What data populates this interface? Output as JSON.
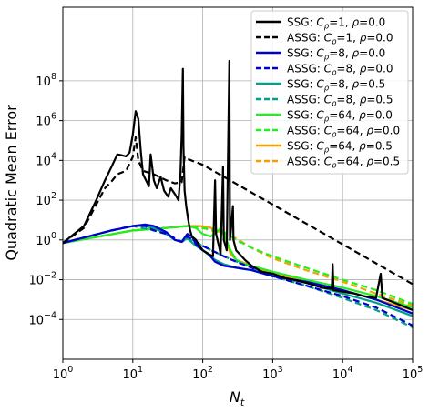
{
  "chart_data": {
    "type": "line",
    "xlabel_base": "N",
    "xlabel_sub": "t",
    "ylabel": "Quadratic Mean Error",
    "xscale": "log",
    "yscale": "log",
    "xlim": [
      1,
      100000
    ],
    "ylim": [
      1e-06,
      500000000000
    ],
    "grid": true,
    "legend_position": "top-right",
    "xticks": [
      {
        "value": 1,
        "base": "10",
        "exp": "0"
      },
      {
        "value": 10,
        "base": "10",
        "exp": "1"
      },
      {
        "value": 100,
        "base": "10",
        "exp": "2"
      },
      {
        "value": 1000,
        "base": "10",
        "exp": "3"
      },
      {
        "value": 10000,
        "base": "10",
        "exp": "4"
      },
      {
        "value": 100000,
        "base": "10",
        "exp": "5"
      }
    ],
    "yticks": [
      {
        "value": 0.0001,
        "base": "10",
        "exp": "−4"
      },
      {
        "value": 0.01,
        "base": "10",
        "exp": "−2"
      },
      {
        "value": 1,
        "base": "10",
        "exp": "0"
      },
      {
        "value": 100,
        "base": "10",
        "exp": "2"
      },
      {
        "value": 10000,
        "base": "10",
        "exp": "4"
      },
      {
        "value": 1000000,
        "base": "10",
        "exp": "6"
      },
      {
        "value": 100000000,
        "base": "10",
        "exp": "8"
      }
    ],
    "series": [
      {
        "name": "SSG: Cρ=1, ρ=0.0",
        "label": {
          "prefix": "SSG: ",
          "c": "1",
          "rho": "0.0"
        },
        "color": "#000000",
        "dash": false,
        "points": [
          [
            1,
            0.7
          ],
          [
            2,
            5
          ],
          [
            3,
            100
          ],
          [
            4,
            1000
          ],
          [
            5,
            5000
          ],
          [
            6,
            20000
          ],
          [
            7,
            18000
          ],
          [
            8,
            16000
          ],
          [
            9,
            25000
          ],
          [
            10,
            200000
          ],
          [
            11,
            3000000
          ],
          [
            12,
            1200000
          ],
          [
            13,
            30000
          ],
          [
            14,
            2000
          ],
          [
            17,
            500
          ],
          [
            18,
            20000
          ],
          [
            20,
            1000
          ],
          [
            22,
            400
          ],
          [
            25,
            1500
          ],
          [
            28,
            300
          ],
          [
            32,
            150
          ],
          [
            35,
            400
          ],
          [
            40,
            200
          ],
          [
            45,
            100
          ],
          [
            48,
            2000
          ],
          [
            50,
            200000
          ],
          [
            52,
            400000000
          ],
          [
            53,
            50000
          ],
          [
            55,
            300
          ],
          [
            58,
            50
          ],
          [
            62,
            10
          ],
          [
            66,
            3
          ],
          [
            70,
            1.5
          ],
          [
            80,
            1
          ],
          [
            90,
            0.5
          ],
          [
            100,
            0.3
          ],
          [
            120,
            0.2
          ],
          [
            140,
            0.15
          ],
          [
            150,
            1000
          ],
          [
            155,
            2
          ],
          [
            170,
            0.5
          ],
          [
            180,
            0.2
          ],
          [
            195,
            5000
          ],
          [
            200,
            1
          ],
          [
            220,
            0.3
          ],
          [
            240,
            1000000000
          ],
          [
            245,
            1
          ],
          [
            250,
            2
          ],
          [
            270,
            50
          ],
          [
            275,
            1
          ],
          [
            300,
            0.3
          ],
          [
            400,
            0.1
          ],
          [
            500,
            0.05
          ],
          [
            700,
            0.025
          ],
          [
            1000,
            0.02
          ],
          [
            1500,
            0.012
          ],
          [
            2000,
            0.01
          ],
          [
            3000,
            0.007
          ],
          [
            5000,
            0.004
          ],
          [
            7000,
            0.0035
          ],
          [
            7200,
            0.06
          ],
          [
            7400,
            0.003
          ],
          [
            10000,
            0.0025
          ],
          [
            15000,
            0.002
          ],
          [
            20000,
            0.0015
          ],
          [
            30000,
            0.0012
          ],
          [
            35000,
            0.02
          ],
          [
            37000,
            0.0012
          ],
          [
            50000,
            0.0008
          ],
          [
            100000,
            0.0003
          ]
        ]
      },
      {
        "name": "ASSG: Cρ=1, ρ=0.0",
        "label": {
          "prefix": "ASSG: ",
          "c": "1",
          "rho": "0.0"
        },
        "color": "#000000",
        "dash": true,
        "points": [
          [
            1,
            0.7
          ],
          [
            2,
            4
          ],
          [
            3,
            60
          ],
          [
            4,
            400
          ],
          [
            5,
            900
          ],
          [
            6,
            2000
          ],
          [
            8,
            3000
          ],
          [
            10,
            15000
          ],
          [
            11,
            150000
          ],
          [
            12,
            10000
          ],
          [
            14,
            3000
          ],
          [
            20,
            2000
          ],
          [
            30,
            1000
          ],
          [
            40,
            700
          ],
          [
            50,
            800
          ],
          [
            55,
            15000
          ],
          [
            60,
            12000
          ],
          [
            100,
            6000
          ],
          [
            100000,
            0.006
          ]
        ]
      },
      {
        "name": "SSG: Cρ=8, ρ=0.0",
        "label": {
          "prefix": "SSG: ",
          "c": "8",
          "rho": "0.0"
        },
        "color": "#0000cc",
        "dash": false,
        "points": [
          [
            1,
            0.7
          ],
          [
            5,
            3
          ],
          [
            10,
            5
          ],
          [
            15,
            6
          ],
          [
            20,
            5
          ],
          [
            30,
            2.5
          ],
          [
            40,
            1
          ],
          [
            50,
            0.8
          ],
          [
            60,
            2
          ],
          [
            70,
            1.5
          ],
          [
            80,
            0.6
          ],
          [
            100,
            0.3
          ],
          [
            120,
            0.2
          ],
          [
            150,
            0.08
          ],
          [
            200,
            0.05
          ],
          [
            300,
            0.04
          ],
          [
            500,
            0.03
          ],
          [
            1000,
            0.015
          ],
          [
            3000,
            0.008
          ],
          [
            10000,
            0.003
          ],
          [
            30000,
            0.001
          ],
          [
            100000,
            0.0002
          ]
        ]
      },
      {
        "name": "ASSG: Cρ=8, ρ=0.0",
        "label": {
          "prefix": "ASSG: ",
          "c": "8",
          "rho": "0.0"
        },
        "color": "#0000cc",
        "dash": true,
        "points": [
          [
            1,
            0.7
          ],
          [
            5,
            3
          ],
          [
            10,
            5
          ],
          [
            15,
            5
          ],
          [
            20,
            3
          ],
          [
            30,
            2
          ],
          [
            40,
            1.2
          ],
          [
            50,
            0.8
          ],
          [
            60,
            1.5
          ],
          [
            100,
            0.5
          ],
          [
            200,
            0.15
          ],
          [
            300,
            0.08
          ],
          [
            500,
            0.04
          ],
          [
            1000,
            0.015
          ],
          [
            3000,
            0.005
          ],
          [
            10000,
            0.0015
          ],
          [
            30000,
            0.0004
          ],
          [
            100000,
            5e-05
          ]
        ]
      },
      {
        "name": "SSG: Cρ=8, ρ=0.5",
        "label": {
          "prefix": "SSG: ",
          "c": "8",
          "rho": "0.5"
        },
        "color": "#00a08a",
        "dash": false,
        "points": [
          [
            1,
            0.7
          ],
          [
            5,
            3
          ],
          [
            10,
            5
          ],
          [
            15,
            5
          ],
          [
            20,
            4
          ],
          [
            30,
            2
          ],
          [
            40,
            1
          ],
          [
            50,
            0.8
          ],
          [
            60,
            1.2
          ],
          [
            80,
            0.5
          ],
          [
            100,
            0.3
          ],
          [
            150,
            0.1
          ],
          [
            200,
            0.06
          ],
          [
            300,
            0.04
          ],
          [
            500,
            0.03
          ],
          [
            1000,
            0.015
          ],
          [
            3000,
            0.007
          ],
          [
            10000,
            0.002
          ],
          [
            30000,
            0.0007
          ],
          [
            100000,
            0.00015
          ]
        ]
      },
      {
        "name": "ASSG: Cρ=8, ρ=0.5",
        "label": {
          "prefix": "ASSG: ",
          "c": "8",
          "rho": "0.5"
        },
        "color": "#00a08a",
        "dash": true,
        "points": [
          [
            1,
            0.7
          ],
          [
            5,
            3
          ],
          [
            10,
            5
          ],
          [
            20,
            3
          ],
          [
            30,
            2
          ],
          [
            40,
            1
          ],
          [
            50,
            0.8
          ],
          [
            60,
            1.2
          ],
          [
            100,
            0.5
          ],
          [
            200,
            0.15
          ],
          [
            500,
            0.04
          ],
          [
            1000,
            0.015
          ],
          [
            3000,
            0.005
          ],
          [
            10000,
            0.0012
          ],
          [
            30000,
            0.0003
          ],
          [
            100000,
            4e-05
          ]
        ]
      },
      {
        "name": "SSG: Cρ=64, ρ=0.0",
        "label": {
          "prefix": "SSG: ",
          "c": "64",
          "rho": "0.0"
        },
        "color": "#22ee22",
        "dash": false,
        "points": [
          [
            1,
            0.7
          ],
          [
            10,
            3
          ],
          [
            30,
            4
          ],
          [
            60,
            5
          ],
          [
            80,
            4
          ],
          [
            100,
            2
          ],
          [
            130,
            1.5
          ],
          [
            160,
            2.5
          ],
          [
            180,
            4
          ],
          [
            200,
            2
          ],
          [
            250,
            0.3
          ],
          [
            300,
            0.1
          ],
          [
            400,
            0.06
          ],
          [
            500,
            0.05
          ],
          [
            1000,
            0.025
          ],
          [
            3000,
            0.01
          ],
          [
            10000,
            0.004
          ],
          [
            30000,
            0.0015
          ],
          [
            100000,
            0.0004
          ]
        ]
      },
      {
        "name": "ASSG: Cρ=64, ρ=0.0",
        "label": {
          "prefix": "ASSG: ",
          "c": "64",
          "rho": "0.0"
        },
        "color": "#22ee22",
        "dash": true,
        "points": [
          [
            1,
            0.7
          ],
          [
            10,
            3
          ],
          [
            30,
            4
          ],
          [
            60,
            5
          ],
          [
            100,
            4
          ],
          [
            150,
            3
          ],
          [
            200,
            2.5
          ],
          [
            300,
            1
          ],
          [
            500,
            0.4
          ],
          [
            1000,
            0.15
          ],
          [
            3000,
            0.04
          ],
          [
            10000,
            0.01
          ],
          [
            30000,
            0.003
          ],
          [
            100000,
            0.0006
          ]
        ]
      },
      {
        "name": "SSG: Cρ=64, ρ=0.5",
        "label": {
          "prefix": "SSG: ",
          "c": "64",
          "rho": "0.5"
        },
        "color": "#f5a000",
        "dash": false,
        "points": [
          [
            1,
            0.7
          ],
          [
            10,
            3
          ],
          [
            30,
            4
          ],
          [
            60,
            5
          ],
          [
            90,
            5
          ],
          [
            120,
            4.5
          ],
          [
            160,
            3
          ],
          [
            200,
            2
          ],
          [
            250,
            0.2
          ],
          [
            300,
            0.1
          ],
          [
            500,
            0.05
          ],
          [
            1000,
            0.02
          ],
          [
            3000,
            0.008
          ],
          [
            10000,
            0.003
          ],
          [
            30000,
            0.001
          ],
          [
            100000,
            0.0003
          ]
        ]
      },
      {
        "name": "ASSG: Cρ=64, ρ=0.5",
        "label": {
          "prefix": "ASSG: ",
          "c": "64",
          "rho": "0.5"
        },
        "color": "#f5a000",
        "dash": true,
        "points": [
          [
            1,
            0.7
          ],
          [
            10,
            3
          ],
          [
            30,
            4
          ],
          [
            60,
            5
          ],
          [
            100,
            4
          ],
          [
            200,
            2
          ],
          [
            300,
            1.2
          ],
          [
            500,
            0.4
          ],
          [
            1000,
            0.12
          ],
          [
            3000,
            0.03
          ],
          [
            10000,
            0.008
          ],
          [
            30000,
            0.002
          ],
          [
            100000,
            0.0005
          ]
        ]
      }
    ]
  }
}
